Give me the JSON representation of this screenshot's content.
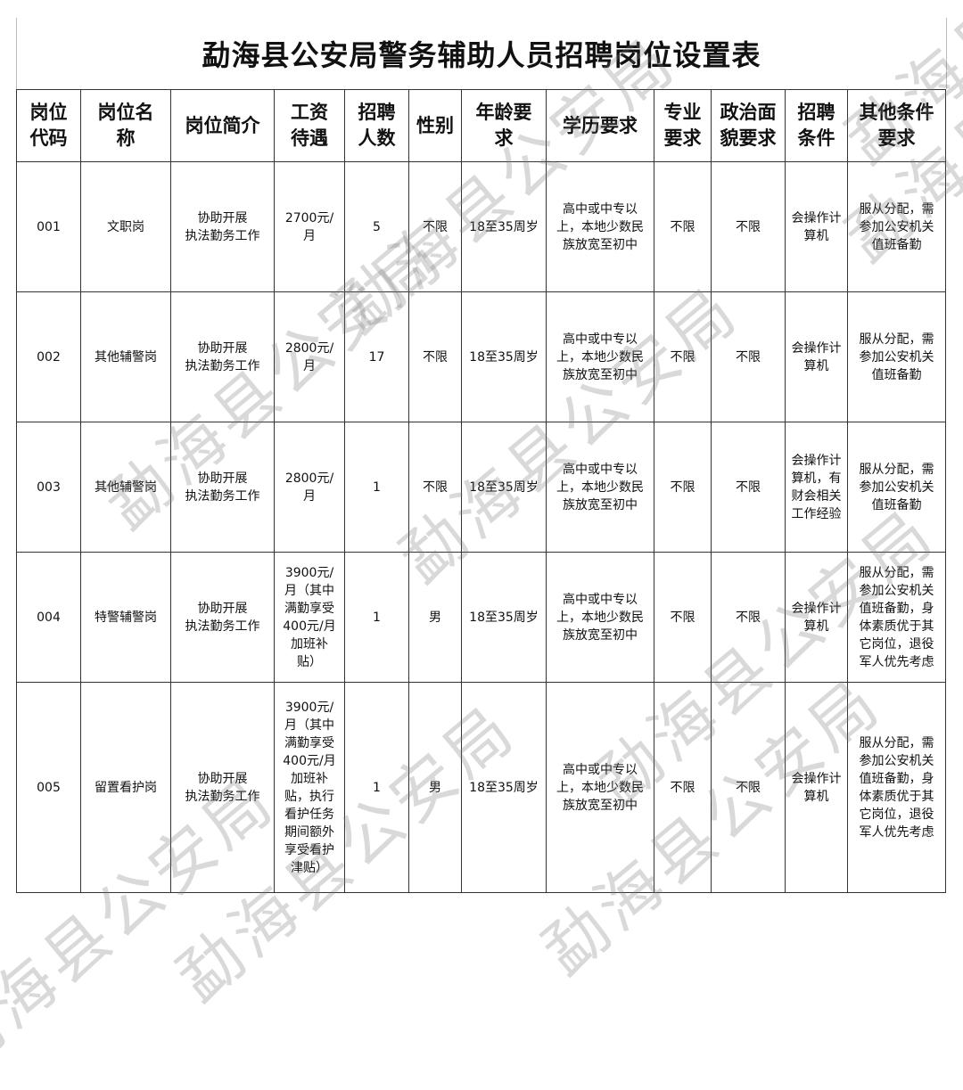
{
  "title": "勐海县公安局警务辅助人员招聘岗位设置表",
  "watermark": "勐海县公安局",
  "headers": [
    "岗位\n代码",
    "岗位名\n称",
    "岗位简介",
    "工资\n待遇",
    "招聘\n人数",
    "性别",
    "年龄要\n求",
    "学历要求",
    "专业\n要求",
    "政治面\n貌要求",
    "招聘\n条件",
    "其他条件\n要求"
  ],
  "rows": [
    [
      "001",
      "文职岗",
      "协助开展\n执法勤务工作",
      "2700元/\n月",
      "5",
      "不限",
      "18至35周岁",
      "高中或中专以\n上，本地少数民\n族放宽至初中",
      "不限",
      "不限",
      "会操作计\n算机",
      "服从分配，需\n参加公安机关\n值班备勤"
    ],
    [
      "002",
      "其他辅警岗",
      "协助开展\n执法勤务工作",
      "2800元/\n月",
      "17",
      "不限",
      "18至35周岁",
      "高中或中专以\n上，本地少数民\n族放宽至初中",
      "不限",
      "不限",
      "会操作计\n算机",
      "服从分配，需\n参加公安机关\n值班备勤"
    ],
    [
      "003",
      "其他辅警岗",
      "协助开展\n执法勤务工作",
      "2800元/\n月",
      "1",
      "不限",
      "18至35周岁",
      "高中或中专以\n上，本地少数民\n族放宽至初中",
      "不限",
      "不限",
      "会操作计\n算机，有\n财会相关\n工作经验",
      "服从分配，需\n参加公安机关\n值班备勤"
    ],
    [
      "004",
      "特警辅警岗",
      "协助开展\n执法勤务工作",
      "3900元/\n月（其中\n满勤享受\n400元/月\n加班补\n贴）",
      "1",
      "男",
      "18至35周岁",
      "高中或中专以\n上，本地少数民\n族放宽至初中",
      "不限",
      "不限",
      "会操作计\n算机",
      "服从分配，需\n参加公安机关\n值班备勤，身\n体素质优于其\n它岗位，退役\n军人优先考虑"
    ],
    [
      "005",
      "留置看护岗",
      "协助开展\n执法勤务工作",
      "3900元/\n月（其中\n满勤享受\n400元/月\n加班补\n贴，执行\n看护任务\n期间额外\n享受看护\n津贴）",
      "1",
      "男",
      "18至35周岁",
      "高中或中专以\n上，本地少数民\n族放宽至初中",
      "不限",
      "不限",
      "会操作计\n算机",
      "服从分配，需\n参加公安机关\n值班备勤，身\n体素质优于其\n它岗位，退役\n军人优先考虑"
    ]
  ]
}
